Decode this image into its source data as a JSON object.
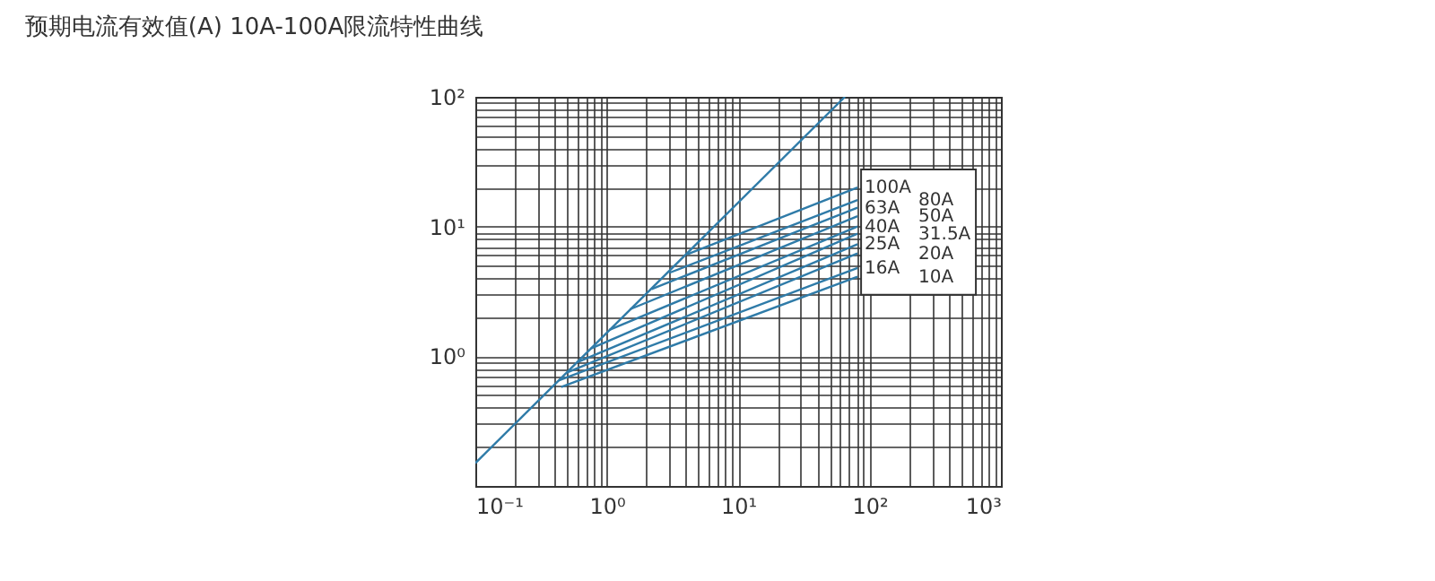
{
  "chart_data": {
    "type": "line",
    "title": "预期电流有效值(A) 10A-100A限流特性曲线",
    "log": "xy",
    "grid": true,
    "legend": false,
    "marker": "none",
    "line_style": "solid",
    "xlim": [
      0.1,
      1000
    ],
    "ylim": [
      0.1,
      100
    ],
    "xticks": [
      {
        "value": 0.1,
        "label": "10⁻¹"
      },
      {
        "value": 0.2,
        "label": null
      },
      {
        "value": 0.3,
        "label": null
      },
      {
        "value": 0.4,
        "label": null
      },
      {
        "value": 0.5,
        "label": null
      },
      {
        "value": 0.6,
        "label": null
      },
      {
        "value": 0.7,
        "label": null
      },
      {
        "value": 0.8,
        "label": null
      },
      {
        "value": 0.9,
        "label": null
      },
      {
        "value": 1,
        "label": "10⁰"
      },
      {
        "value": 2,
        "label": null
      },
      {
        "value": 3,
        "label": null
      },
      {
        "value": 4,
        "label": null
      },
      {
        "value": 5,
        "label": null
      },
      {
        "value": 6,
        "label": null
      },
      {
        "value": 7,
        "label": null
      },
      {
        "value": 8,
        "label": null
      },
      {
        "value": 9,
        "label": null
      },
      {
        "value": 10,
        "label": "10¹"
      },
      {
        "value": 20,
        "label": null
      },
      {
        "value": 30,
        "label": null
      },
      {
        "value": 40,
        "label": null
      },
      {
        "value": 50,
        "label": null
      },
      {
        "value": 60,
        "label": null
      },
      {
        "value": 70,
        "label": null
      },
      {
        "value": 80,
        "label": null
      },
      {
        "value": 90,
        "label": null
      },
      {
        "value": 100,
        "label": "10²"
      },
      {
        "value": 200,
        "label": null
      },
      {
        "value": 300,
        "label": null
      },
      {
        "value": 400,
        "label": null
      },
      {
        "value": 500,
        "label": null
      },
      {
        "value": 600,
        "label": null
      },
      {
        "value": 700,
        "label": null
      },
      {
        "value": 800,
        "label": null
      },
      {
        "value": 900,
        "label": null
      },
      {
        "value": 1000,
        "label": "10³"
      }
    ],
    "yticks": [
      {
        "value": 0.1,
        "label": null
      },
      {
        "value": 0.2,
        "label": null
      },
      {
        "value": 0.3,
        "label": null
      },
      {
        "value": 0.4,
        "label": null
      },
      {
        "value": 0.5,
        "label": null
      },
      {
        "value": 0.6,
        "label": null
      },
      {
        "value": 0.7,
        "label": null
      },
      {
        "value": 0.8,
        "label": null
      },
      {
        "value": 0.9,
        "label": null
      },
      {
        "value": 1,
        "label": "10⁰"
      },
      {
        "value": 2,
        "label": null
      },
      {
        "value": 3,
        "label": null
      },
      {
        "value": 4,
        "label": null
      },
      {
        "value": 5,
        "label": null
      },
      {
        "value": 6,
        "label": null
      },
      {
        "value": 7,
        "label": null
      },
      {
        "value": 8,
        "label": null
      },
      {
        "value": 9,
        "label": null
      },
      {
        "value": 10,
        "label": "10¹"
      },
      {
        "value": 20,
        "label": null
      },
      {
        "value": 30,
        "label": null
      },
      {
        "value": 40,
        "label": null
      },
      {
        "value": 50,
        "label": null
      },
      {
        "value": 60,
        "label": null
      },
      {
        "value": 70,
        "label": null
      },
      {
        "value": 80,
        "label": null
      },
      {
        "value": 90,
        "label": null
      },
      {
        "value": 100,
        "label": "10²"
      }
    ],
    "series": [
      {
        "color": "#2f7ba8",
        "x": [
          0.1,
          65
        ],
        "values": [
          0.15,
          100
        ]
      },
      {
        "name": "100A",
        "color": "#2f7ba8",
        "x": [
          4.1,
          81
        ],
        "values": [
          6.1,
          20
        ]
      },
      {
        "name": "80A",
        "color": "#2f7ba8",
        "x": [
          3,
          81
        ],
        "values": [
          4.4,
          16
        ]
      },
      {
        "name": "63A",
        "color": "#2f7ba8",
        "x": [
          2.2,
          81
        ],
        "values": [
          3.3,
          14
        ]
      },
      {
        "name": "50A",
        "color": "#2f7ba8",
        "x": [
          1.5,
          81
        ],
        "values": [
          2.3,
          12
        ]
      },
      {
        "name": "40A",
        "color": "#2f7ba8",
        "x": [
          1.05,
          81
        ],
        "values": [
          1.6,
          10
        ]
      },
      {
        "name": "31.5A",
        "color": "#2f7ba8",
        "x": [
          0.76,
          81
        ],
        "values": [
          1.15,
          8.8
        ]
      },
      {
        "name": "25A",
        "color": "#2f7ba8",
        "x": [
          0.6,
          81
        ],
        "values": [
          0.9,
          7.3
        ]
      },
      {
        "name": "20A",
        "color": "#2f7ba8",
        "x": [
          0.5,
          81
        ],
        "values": [
          0.75,
          6.2
        ]
      },
      {
        "name": "16A",
        "color": "#2f7ba8",
        "x": [
          0.43,
          81
        ],
        "values": [
          0.65,
          4.8
        ]
      },
      {
        "name": "10A",
        "color": "#2f7ba8",
        "x": [
          0.45,
          81
        ],
        "values": [
          0.58,
          4.1
        ]
      }
    ]
  }
}
